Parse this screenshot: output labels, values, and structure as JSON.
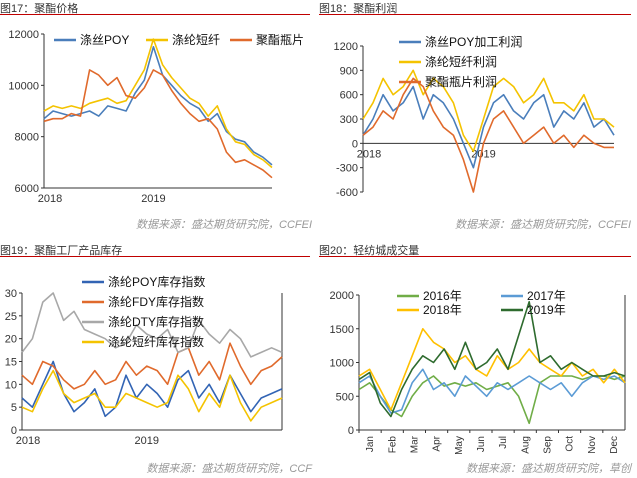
{
  "chart_data": [
    {
      "type": "line",
      "title": "图17：聚酯价格",
      "source": "数据来源：盛达期货研究院，CCFEI",
      "ylim": [
        6000,
        12000
      ],
      "yticks": [
        "6000",
        "8000",
        "10000",
        "12000"
      ],
      "xticks": [
        "2018",
        "2019"
      ],
      "xlim": [
        0,
        100
      ],
      "grid": false,
      "legend": "top",
      "series": [
        {
          "name": "涤丝POY",
          "color": "#4a7ebb",
          "x": [
            0,
            4,
            8,
            12,
            16,
            20,
            24,
            28,
            32,
            36,
            40,
            44,
            48,
            52,
            56,
            60,
            64,
            68,
            72,
            76,
            80,
            84,
            88,
            92,
            96,
            100
          ],
          "values": [
            8700,
            9000,
            8900,
            8800,
            8900,
            9000,
            8800,
            9200,
            9100,
            9000,
            9700,
            10200,
            11500,
            10400,
            10000,
            9600,
            9300,
            9100,
            8600,
            8900,
            8200,
            7900,
            7800,
            7400,
            7200,
            6900
          ]
        },
        {
          "name": "涤纶短纤",
          "color": "#f4c300",
          "x": [
            0,
            4,
            8,
            12,
            16,
            20,
            24,
            28,
            32,
            36,
            40,
            44,
            48,
            52,
            56,
            60,
            64,
            68,
            72,
            76,
            80,
            84,
            88,
            92,
            96,
            100
          ],
          "values": [
            9000,
            9200,
            9100,
            9200,
            9100,
            9300,
            9400,
            9500,
            9300,
            9400,
            10000,
            10600,
            11800,
            10800,
            10300,
            9900,
            9500,
            9300,
            8800,
            9200,
            8300,
            7800,
            7700,
            7300,
            7100,
            6800
          ]
        },
        {
          "name": "聚酯瓶片",
          "color": "#e06a2c",
          "x": [
            0,
            4,
            8,
            12,
            16,
            20,
            24,
            28,
            32,
            36,
            40,
            44,
            48,
            52,
            56,
            60,
            64,
            68,
            72,
            76,
            80,
            84,
            88,
            92,
            96,
            100
          ],
          "values": [
            8600,
            8700,
            8700,
            8900,
            8800,
            10600,
            10400,
            10000,
            10300,
            9600,
            9500,
            9900,
            10600,
            10400,
            9800,
            9300,
            8900,
            8600,
            8700,
            8300,
            7400,
            7000,
            7100,
            6900,
            6700,
            6400
          ]
        }
      ]
    },
    {
      "type": "line",
      "title": "图18：聚酯利润",
      "source": "数据来源：盛达期货研究院，CCFEI",
      "ylim": [
        -600,
        1200
      ],
      "yticks": [
        "-600",
        "-300",
        "0",
        "300",
        "600",
        "900",
        "1200"
      ],
      "xticks": [
        "2018",
        "2019"
      ],
      "xlim": [
        0,
        100
      ],
      "grid": false,
      "legend": "top",
      "series": [
        {
          "name": "涤丝POY加工利润",
          "color": "#4a7ebb",
          "x": [
            0,
            4,
            8,
            12,
            16,
            20,
            24,
            28,
            32,
            36,
            40,
            44,
            48,
            52,
            56,
            60,
            64,
            68,
            72,
            76,
            80,
            84,
            88,
            92,
            96,
            100
          ],
          "values": [
            100,
            300,
            600,
            400,
            500,
            700,
            300,
            600,
            500,
            300,
            0,
            -300,
            200,
            500,
            600,
            400,
            300,
            500,
            600,
            200,
            400,
            300,
            500,
            200,
            300,
            100
          ]
        },
        {
          "name": "涤纶短纤利润",
          "color": "#f4c300",
          "x": [
            0,
            4,
            8,
            12,
            16,
            20,
            24,
            28,
            32,
            36,
            40,
            44,
            48,
            52,
            56,
            60,
            64,
            68,
            72,
            76,
            80,
            84,
            88,
            92,
            96,
            100
          ],
          "values": [
            300,
            500,
            800,
            600,
            700,
            900,
            600,
            800,
            700,
            500,
            100,
            -100,
            300,
            700,
            800,
            700,
            500,
            600,
            800,
            500,
            500,
            400,
            600,
            300,
            300,
            200
          ]
        },
        {
          "name": "聚酯瓶片利润",
          "color": "#e06a2c",
          "x": [
            0,
            4,
            8,
            12,
            16,
            20,
            24,
            28,
            32,
            36,
            40,
            44,
            48,
            52,
            56,
            60,
            64,
            68,
            72,
            76,
            80,
            84,
            88,
            92,
            96,
            100
          ],
          "values": [
            100,
            200,
            400,
            300,
            600,
            800,
            700,
            400,
            200,
            100,
            -200,
            -600,
            0,
            300,
            400,
            200,
            0,
            100,
            200,
            0,
            100,
            -50,
            100,
            0,
            -50,
            -50
          ]
        }
      ]
    },
    {
      "type": "line",
      "title": "图19：聚酯工厂产品库存",
      "source": "数据来源：盛达期货研究院，CCF",
      "ylim": [
        0,
        30
      ],
      "yticks": [
        "0",
        "5",
        "10",
        "15",
        "20",
        "25",
        "30"
      ],
      "xticks": [
        "2018",
        "2019"
      ],
      "xlim": [
        0,
        100
      ],
      "grid": false,
      "legend": "top",
      "series": [
        {
          "name": "涤纶POY库存指数",
          "color": "#3264b4",
          "x": [
            0,
            4,
            8,
            12,
            16,
            20,
            24,
            28,
            32,
            36,
            40,
            44,
            48,
            52,
            56,
            60,
            64,
            68,
            72,
            76,
            80,
            84,
            88,
            92,
            96,
            100
          ],
          "values": [
            7,
            5,
            10,
            15,
            8,
            4,
            6,
            9,
            3,
            5,
            12,
            7,
            10,
            8,
            5,
            11,
            13,
            7,
            10,
            6,
            12,
            8,
            4,
            7,
            8,
            9
          ]
        },
        {
          "name": "涤纶FDY库存指数",
          "color": "#e06a2c",
          "x": [
            0,
            4,
            8,
            12,
            16,
            20,
            24,
            28,
            32,
            36,
            40,
            44,
            48,
            52,
            56,
            60,
            64,
            68,
            72,
            76,
            80,
            84,
            88,
            92,
            96,
            100
          ],
          "values": [
            12,
            10,
            15,
            14,
            11,
            9,
            10,
            13,
            10,
            11,
            15,
            12,
            14,
            13,
            10,
            17,
            18,
            12,
            15,
            11,
            19,
            14,
            10,
            13,
            14,
            16
          ]
        },
        {
          "name": "涤纶DTY库存指数",
          "color": "#a8a8a8",
          "x": [
            0,
            4,
            8,
            12,
            16,
            20,
            24,
            28,
            32,
            36,
            40,
            44,
            48,
            52,
            56,
            60,
            64,
            68,
            72,
            76,
            80,
            84,
            88,
            92,
            96,
            100
          ],
          "values": [
            17,
            20,
            28,
            30,
            24,
            26,
            22,
            21,
            20,
            18,
            19,
            23,
            21,
            20,
            22,
            17,
            18,
            24,
            21,
            19,
            22,
            20,
            16,
            17,
            18,
            17
          ]
        },
        {
          "name": "涤纶短纤库存指数",
          "color": "#f4c300",
          "x": [
            0,
            4,
            8,
            12,
            16,
            20,
            24,
            28,
            32,
            36,
            40,
            44,
            48,
            52,
            56,
            60,
            64,
            68,
            72,
            76,
            80,
            84,
            88,
            92,
            96,
            100
          ],
          "values": [
            5,
            4,
            9,
            13,
            8,
            6,
            7,
            8,
            5,
            5,
            8,
            7,
            6,
            5,
            6,
            12,
            9,
            4,
            8,
            5,
            12,
            6,
            2,
            5,
            6,
            7
          ]
        }
      ]
    },
    {
      "type": "line",
      "title": "图20：轻纺城成交量",
      "source": "数据来源：盛达期货研究院，草创",
      "ylim": [
        0,
        2000
      ],
      "yticks": [
        "0",
        "500",
        "1000",
        "1500",
        "2000"
      ],
      "categories": [
        "Jan",
        "Feb",
        "Mar",
        "Apr",
        "May",
        "Jun",
        "Jul",
        "Aug",
        "Sep",
        "Oct",
        "Nov",
        "Dec"
      ],
      "xlim": [
        0,
        100
      ],
      "grid": false,
      "legend": "top",
      "series": [
        {
          "name": "2016年",
          "color": "#70ad47",
          "x": [
            0,
            4,
            8,
            12,
            16,
            20,
            24,
            28,
            32,
            36,
            40,
            44,
            48,
            52,
            56,
            60,
            64,
            68,
            72,
            76,
            80,
            84,
            88,
            92,
            96,
            100
          ],
          "values": [
            600,
            700,
            500,
            300,
            200,
            500,
            700,
            800,
            650,
            700,
            650,
            700,
            600,
            650,
            700,
            500,
            100,
            700,
            800,
            800,
            800,
            750,
            800,
            800,
            750,
            800
          ]
        },
        {
          "name": "2017年",
          "color": "#5b9bd5",
          "x": [
            0,
            4,
            8,
            12,
            16,
            20,
            24,
            28,
            32,
            36,
            40,
            44,
            48,
            52,
            56,
            60,
            64,
            68,
            72,
            76,
            80,
            84,
            88,
            92,
            96,
            100
          ],
          "values": [
            700,
            800,
            500,
            250,
            300,
            700,
            900,
            600,
            700,
            500,
            800,
            650,
            500,
            700,
            600,
            700,
            800,
            700,
            600,
            700,
            500,
            700,
            800,
            750,
            800,
            700
          ]
        },
        {
          "name": "2018年",
          "color": "#ffc000",
          "x": [
            0,
            4,
            8,
            12,
            16,
            20,
            24,
            28,
            32,
            36,
            40,
            44,
            48,
            52,
            56,
            60,
            64,
            68,
            72,
            76,
            80,
            84,
            88,
            92,
            96,
            100
          ],
          "values": [
            800,
            900,
            600,
            300,
            700,
            1100,
            1500,
            1300,
            1200,
            1000,
            1100,
            900,
            800,
            1100,
            900,
            1000,
            1200,
            1000,
            900,
            800,
            1000,
            800,
            900,
            700,
            900,
            700
          ]
        },
        {
          "name": "2019年",
          "color": "#2e6b2e",
          "x": [
            0,
            4,
            8,
            12,
            16,
            20,
            24,
            28,
            32,
            36,
            40,
            44,
            48,
            52,
            56,
            60,
            64,
            68,
            72,
            76,
            80,
            84,
            88,
            92,
            96,
            100
          ],
          "values": [
            750,
            850,
            400,
            200,
            600,
            900,
            1100,
            1000,
            1200,
            900,
            1300,
            900,
            1000,
            1200,
            900,
            1400,
            1900,
            1000,
            1100,
            900,
            1000,
            900,
            800,
            800,
            850,
            800
          ]
        }
      ]
    }
  ]
}
